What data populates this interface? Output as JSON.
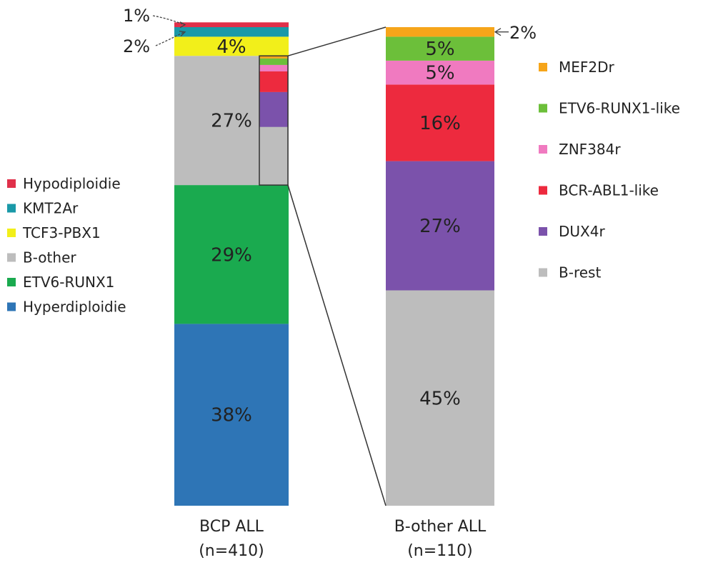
{
  "chart_data": {
    "type": "bar",
    "stacked": true,
    "categories": [
      "BCP ALL\n(n=410)",
      "B-other ALL\n(n=110)"
    ],
    "category_lines": [
      [
        "BCP ALL",
        "(n=410)"
      ],
      [
        "B-other ALL",
        "(n=110)"
      ]
    ],
    "bars": [
      {
        "category": "BCP ALL",
        "segments": [
          {
            "name": "Hyperdiploidie",
            "value": 38,
            "label": "38%",
            "color": "#2e75b6"
          },
          {
            "name": "ETV6-RUNX1",
            "value": 29,
            "label": "29%",
            "color": "#1aaa4f"
          },
          {
            "name": "B-other",
            "value": 27,
            "label": "27%",
            "color": "#bdbdbd"
          },
          {
            "name": "TCF3-PBX1",
            "value": 4,
            "label": "4%",
            "color": "#f2ef1a"
          },
          {
            "name": "KMT2Ar",
            "value": 2,
            "label": "2%",
            "color": "#1a99a8"
          },
          {
            "name": "Hypodiploidie",
            "value": 1,
            "label": "1%",
            "color": "#e0304a"
          }
        ]
      },
      {
        "category": "B-other ALL",
        "segments": [
          {
            "name": "B-rest",
            "value": 45,
            "label": "45%",
            "color": "#bdbdbd"
          },
          {
            "name": "DUX4r",
            "value": 27,
            "label": "27%",
            "color": "#7b52ab"
          },
          {
            "name": "BCR-ABL1-like",
            "value": 16,
            "label": "16%",
            "color": "#ed2a3e"
          },
          {
            "name": "ZNF384r",
            "value": 5,
            "label": "5%",
            "color": "#f07ac0"
          },
          {
            "name": "ETV6-RUNX1-like",
            "value": 5,
            "label": "5%",
            "color": "#6cbf3a"
          },
          {
            "name": "MEF2Dr",
            "value": 2,
            "label": "2%",
            "color": "#f6a51a"
          }
        ]
      }
    ],
    "legend_left": [
      "Hypodiploidie",
      "KMT2Ar",
      "TCF3-PBX1",
      "B-other",
      "ETV6-RUNX1",
      "Hyperdiploidie"
    ],
    "legend_right": [
      "MEF2Dr",
      "ETV6-RUNX1-like",
      "ZNF384r",
      "BCR-ABL1-like",
      "DUX4r",
      "B-rest"
    ],
    "title": "",
    "xlabel": "",
    "ylabel": "",
    "ylim": [
      0,
      100
    ],
    "grid": false
  }
}
